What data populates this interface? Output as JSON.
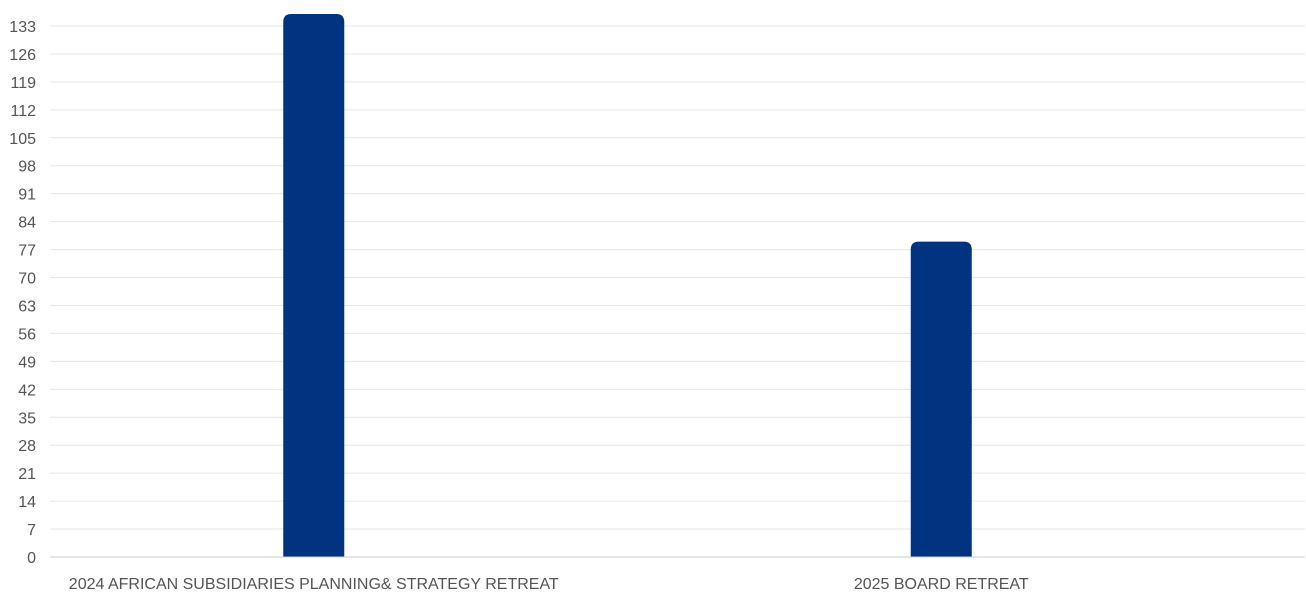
{
  "chart_data": {
    "type": "bar",
    "categories": [
      "2024 AFRICAN SUBSIDIARIES PLANNING& STRATEGY RETREAT",
      "2025 BOARD RETREAT"
    ],
    "values": [
      136,
      79
    ],
    "title": "",
    "xlabel": "",
    "ylabel": "",
    "ylim": [
      0,
      133
    ],
    "yticks": [
      0,
      7,
      14,
      21,
      28,
      35,
      42,
      49,
      56,
      63,
      70,
      77,
      84,
      91,
      98,
      105,
      112,
      119,
      126,
      133
    ],
    "grid": true,
    "legend": "none",
    "bar_color": "#003380"
  }
}
